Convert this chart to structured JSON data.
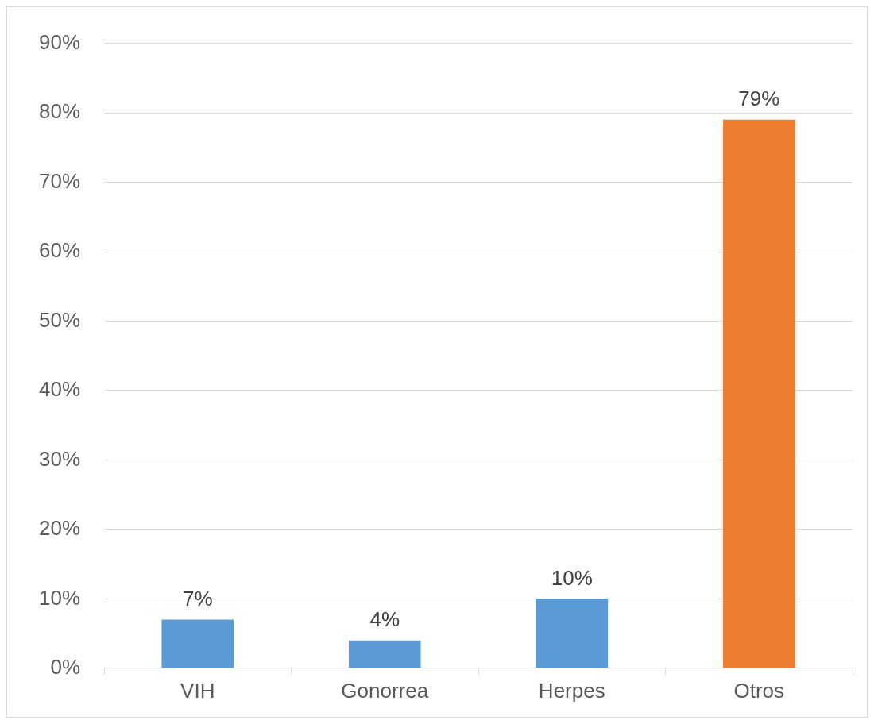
{
  "chart_data": {
    "type": "bar",
    "categories": [
      "VIH",
      "Gonorrea",
      "Herpes",
      "Otros"
    ],
    "values": [
      7,
      4,
      10,
      79
    ],
    "colors": [
      "#5b9bd5",
      "#5b9bd5",
      "#5b9bd5",
      "#ed7d31"
    ],
    "value_labels": [
      "7%",
      "4%",
      "10%",
      "79%"
    ],
    "ylim": [
      0,
      90
    ],
    "yticks": [
      {
        "value": 0,
        "label": "0%"
      },
      {
        "value": 10,
        "label": "10%"
      },
      {
        "value": 20,
        "label": "20%"
      },
      {
        "value": 30,
        "label": "30%"
      },
      {
        "value": 40,
        "label": "40%"
      },
      {
        "value": 50,
        "label": "50%"
      },
      {
        "value": 60,
        "label": "60%"
      },
      {
        "value": 70,
        "label": "70%"
      },
      {
        "value": 80,
        "label": "80%"
      },
      {
        "value": 90,
        "label": "90%"
      }
    ],
    "grid": "y",
    "legend": false
  }
}
